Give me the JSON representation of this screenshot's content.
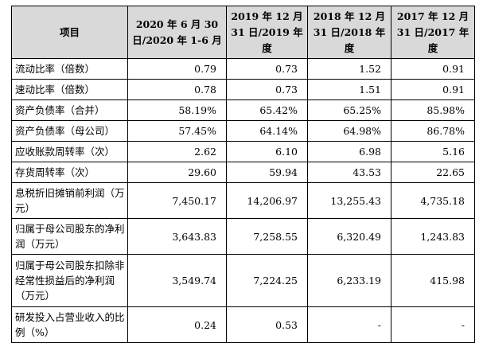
{
  "table": {
    "headers": [
      "项目",
      "2020 年 6 月 30 日/2020 年 1-6 月",
      "2019 年 12 月 31 日/2019 年度",
      "2018 年 12 月 31 日/2018 年度",
      "2017 年 12 月 31 日/2017 年度"
    ],
    "rows": [
      {
        "label": "流动比率（倍数）",
        "values": [
          "0.79",
          "0.73",
          "1.52",
          "0.91"
        ]
      },
      {
        "label": "速动比率（倍数）",
        "values": [
          "0.78",
          "0.73",
          "1.51",
          "0.91"
        ]
      },
      {
        "label": "资产负债率（合并）",
        "values": [
          "58.19%",
          "65.42%",
          "65.25%",
          "85.98%"
        ]
      },
      {
        "label": "资产负债率（母公司）",
        "values": [
          "57.45%",
          "64.14%",
          "64.98%",
          "86.78%"
        ]
      },
      {
        "label": "应收账款周转率（次）",
        "values": [
          "2.62",
          "6.10",
          "6.98",
          "5.16"
        ]
      },
      {
        "label": "存货周转率（次）",
        "values": [
          "29.60",
          "59.94",
          "43.53",
          "22.65"
        ]
      },
      {
        "label": "息税折旧摊销前利润（万元）",
        "values": [
          "7,450.17",
          "14,206.97",
          "13,255.43",
          "4,735.18"
        ]
      },
      {
        "label": "归属于母公司股东的净利润（万元）",
        "values": [
          "3,643.83",
          "7,258.55",
          "6,320.49",
          "1,243.83"
        ]
      },
      {
        "label": "归属于母公司股东扣除非经常性损益后的净利润（万元）",
        "values": [
          "3,549.74",
          "7,224.25",
          "6,233.19",
          "415.98"
        ]
      },
      {
        "label": "研发投入占营业收入的比例（%）",
        "values": [
          "0.24",
          "0.53",
          "-",
          "-"
        ]
      }
    ]
  }
}
